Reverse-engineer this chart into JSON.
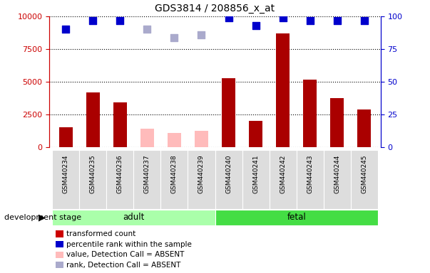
{
  "title": "GDS3814 / 208856_x_at",
  "samples": [
    "GSM440234",
    "GSM440235",
    "GSM440236",
    "GSM440237",
    "GSM440238",
    "GSM440239",
    "GSM440240",
    "GSM440241",
    "GSM440242",
    "GSM440243",
    "GSM440244",
    "GSM440245"
  ],
  "transformed_count": [
    1550,
    4200,
    3450,
    null,
    null,
    null,
    5300,
    2000,
    8700,
    5200,
    3750,
    2900
  ],
  "absent_value": [
    null,
    null,
    null,
    1450,
    1100,
    1250,
    null,
    null,
    null,
    null,
    null,
    null
  ],
  "percentile_rank": [
    90,
    97,
    97,
    null,
    null,
    null,
    99,
    93,
    99,
    97,
    97,
    97
  ],
  "absent_rank": [
    null,
    null,
    null,
    90,
    84,
    86,
    null,
    null,
    null,
    null,
    null,
    null
  ],
  "groups": [
    {
      "label": "adult",
      "start": 0,
      "end": 6,
      "color": "#aaffaa"
    },
    {
      "label": "fetal",
      "start": 6,
      "end": 12,
      "color": "#44dd44"
    }
  ],
  "ylim_left": [
    0,
    10000
  ],
  "ylim_right": [
    0,
    100
  ],
  "yticks_left": [
    0,
    2500,
    5000,
    7500,
    10000
  ],
  "yticks_right": [
    0,
    25,
    50,
    75,
    100
  ],
  "left_axis_color": "#cc0000",
  "right_axis_color": "#0000cc",
  "bar_color_present": "#aa0000",
  "bar_color_absent": "#ffbbbb",
  "dot_color_present": "#0000cc",
  "dot_color_absent": "#aaaacc",
  "dot_size": 55,
  "legend_items": [
    {
      "label": "transformed count",
      "color": "#cc0000"
    },
    {
      "label": "percentile rank within the sample",
      "color": "#0000cc"
    },
    {
      "label": "value, Detection Call = ABSENT",
      "color": "#ffbbbb"
    },
    {
      "label": "rank, Detection Call = ABSENT",
      "color": "#aaaacc"
    }
  ],
  "group_label_text": "development stage",
  "background_color": "#ffffff",
  "plot_bg_color": "#ffffff",
  "sample_box_color": "#dddddd",
  "bar_width": 0.5
}
